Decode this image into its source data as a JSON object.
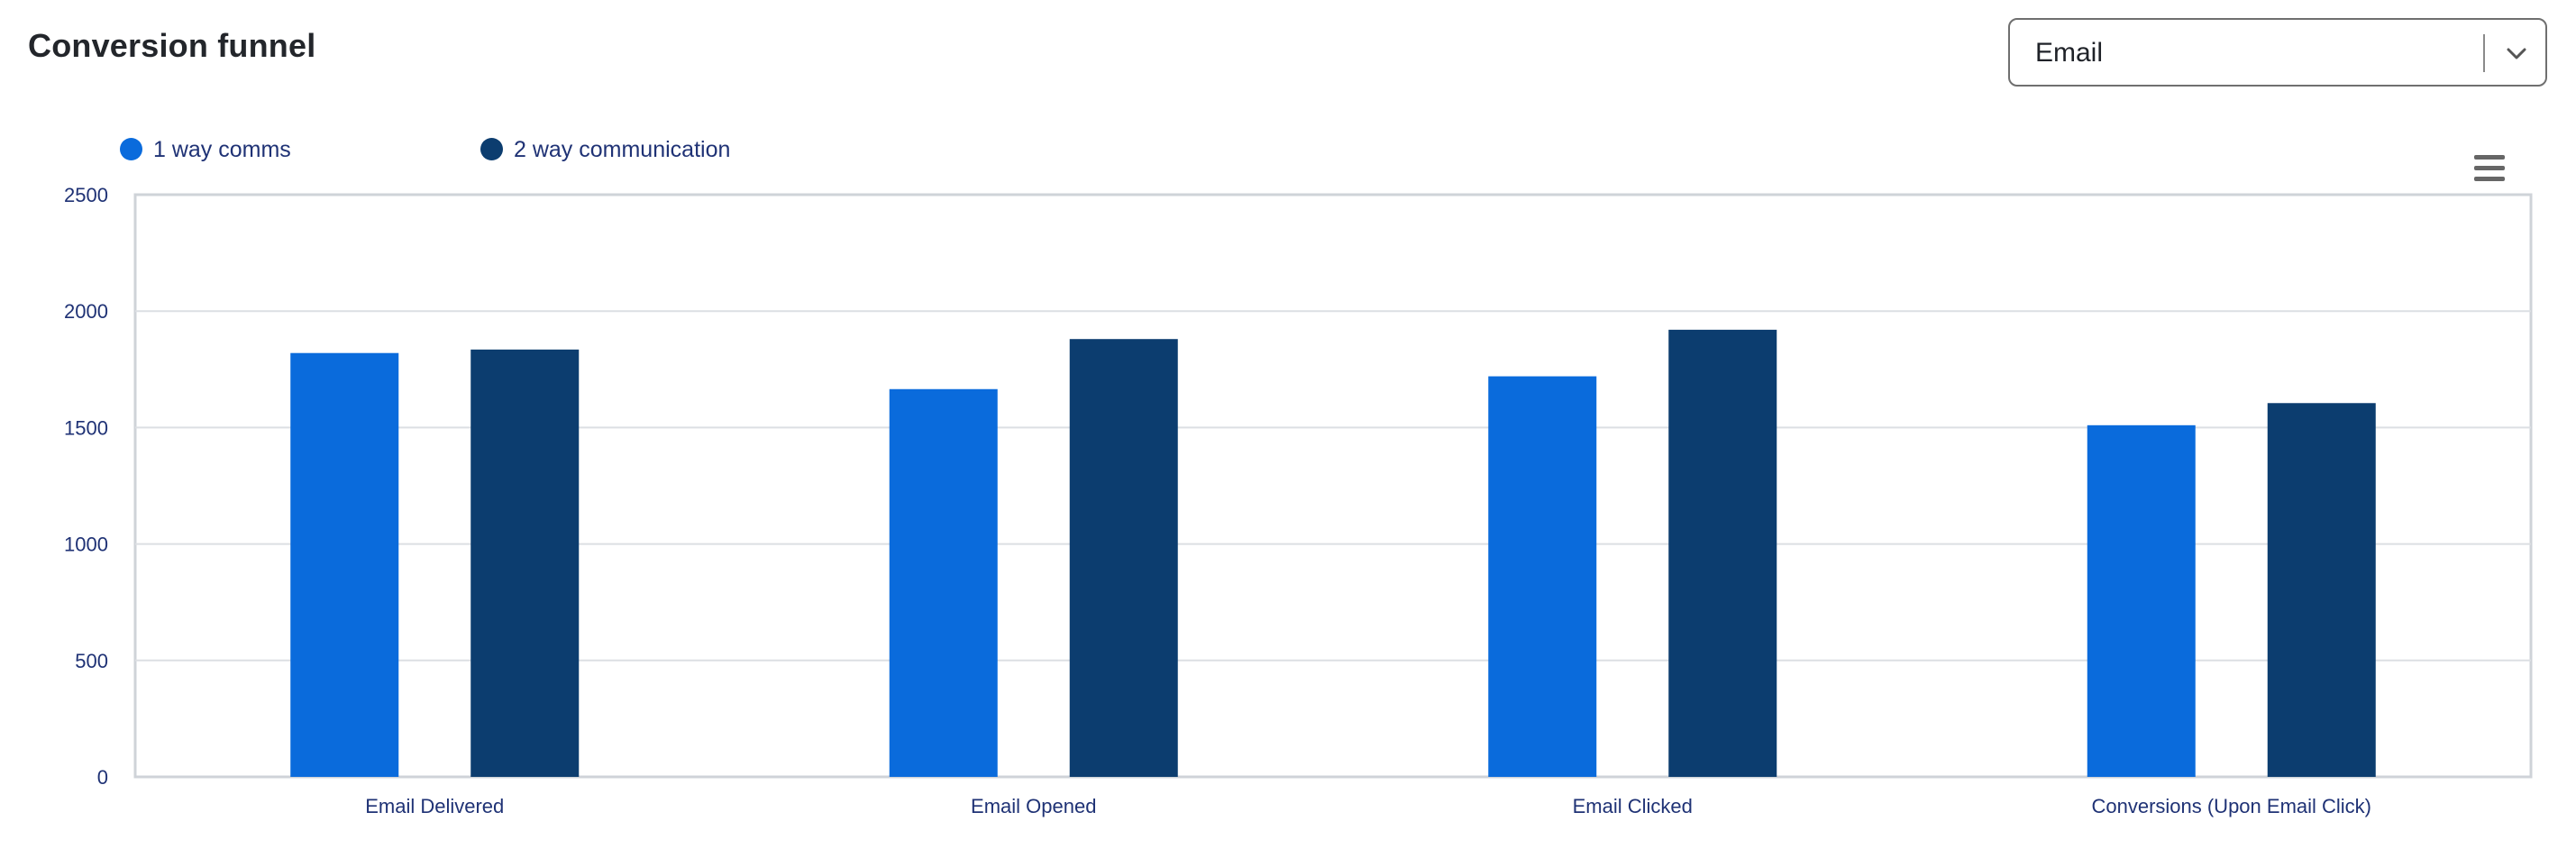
{
  "header": {
    "title": "Conversion funnel"
  },
  "filter": {
    "selected": "Email",
    "icon": "chevron-down-icon"
  },
  "toolbar": {
    "menu_icon": "hamburger-menu-icon"
  },
  "legend": [
    {
      "label": "1 way comms",
      "color": "#0a6bdc"
    },
    {
      "label": "2 way communication",
      "color": "#0c3d6f"
    }
  ],
  "chart_data": {
    "type": "bar",
    "categories": [
      "Email Delivered",
      "Email Opened",
      "Email Clicked",
      "Conversions (Upon Email Click)"
    ],
    "series": [
      {
        "name": "1 way comms",
        "color": "#0a6bdc",
        "values": [
          1820,
          1665,
          1720,
          1510
        ]
      },
      {
        "name": "2 way communication",
        "color": "#0c3d6f",
        "values": [
          1835,
          1880,
          1920,
          1605
        ]
      }
    ],
    "yticks": [
      0,
      500,
      1000,
      1500,
      2000,
      2500
    ],
    "ylim": [
      0,
      2500
    ],
    "grid": true,
    "legend_position": "top-left"
  }
}
